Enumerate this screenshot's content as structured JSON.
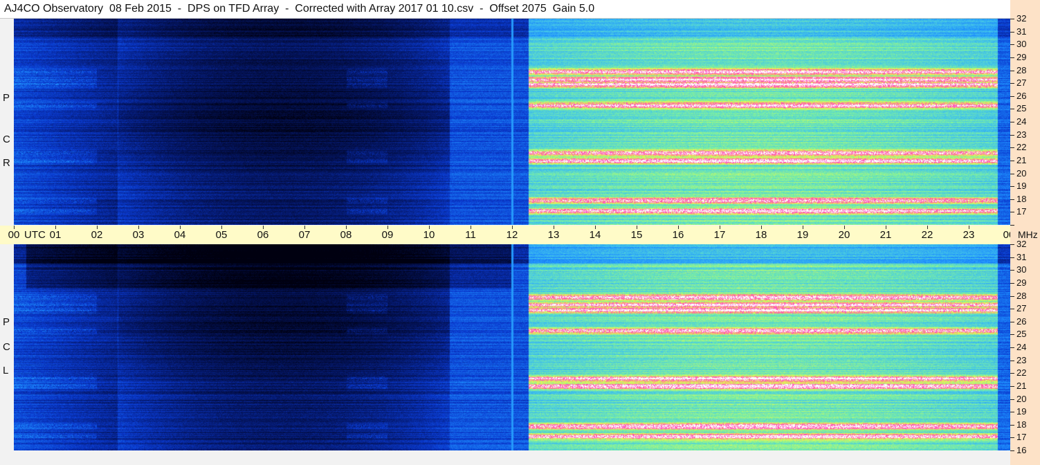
{
  "header": {
    "title": "AJ4CO Observatory  08 Feb 2015  -  DPS on TFD Array  -  Corrected with Array 2017 01 10.csv  -  Offset 2075  Gain 5.0"
  },
  "panels": [
    {
      "id": "rcp",
      "side_label": [
        "P",
        "C",
        "R"
      ]
    },
    {
      "id": "lcp",
      "side_label": [
        "P",
        "C",
        "L"
      ]
    }
  ],
  "chart_data": {
    "type": "heatmap",
    "title": "AJ4CO Observatory  08 Feb 2015  -  DPS on TFD Array  -  Corrected with Array 2017 01 10.csv  -  Offset 2075  Gain 5.0",
    "x_axis": {
      "unit": "UTC",
      "ticks": [
        "00",
        "01",
        "02",
        "03",
        "04",
        "05",
        "06",
        "07",
        "08",
        "09",
        "10",
        "11",
        "12",
        "13",
        "14",
        "15",
        "16",
        "17",
        "18",
        "19",
        "20",
        "21",
        "22",
        "23",
        "00"
      ],
      "range_hours": [
        0,
        24
      ]
    },
    "y_axis": {
      "unit": "MHz",
      "ticks": [
        16,
        17,
        18,
        19,
        20,
        21,
        22,
        23,
        24,
        25,
        26,
        27,
        28,
        29,
        30,
        31,
        32
      ],
      "range": [
        16,
        32
      ]
    },
    "series": [
      {
        "name": "RCP",
        "description_colormap": "dark blue (low) to green, yellow, magenta, white (high)"
      },
      {
        "name": "LCP",
        "description_colormap": "dark blue (low) to green, yellow, magenta, white (high)"
      }
    ],
    "features": {
      "night_low_hours": [
        2.5,
        10.5
      ],
      "day_high_start_hour": 12.4,
      "day_high_end_hour": 23.7,
      "strong_bands_mhz": [
        17.1,
        17.9,
        21.0,
        21.6,
        25.3,
        26.9,
        27.3,
        27.9
      ],
      "marker_hour": 12.0
    },
    "colors": {
      "low": "#000010",
      "mid_low": "#0a3ad0",
      "mid": "#1e90ff",
      "mid_high": "#7cf0a0",
      "high": "#f0ff50",
      "peak": "#ff40c0",
      "saturated": "#ffffff"
    }
  }
}
